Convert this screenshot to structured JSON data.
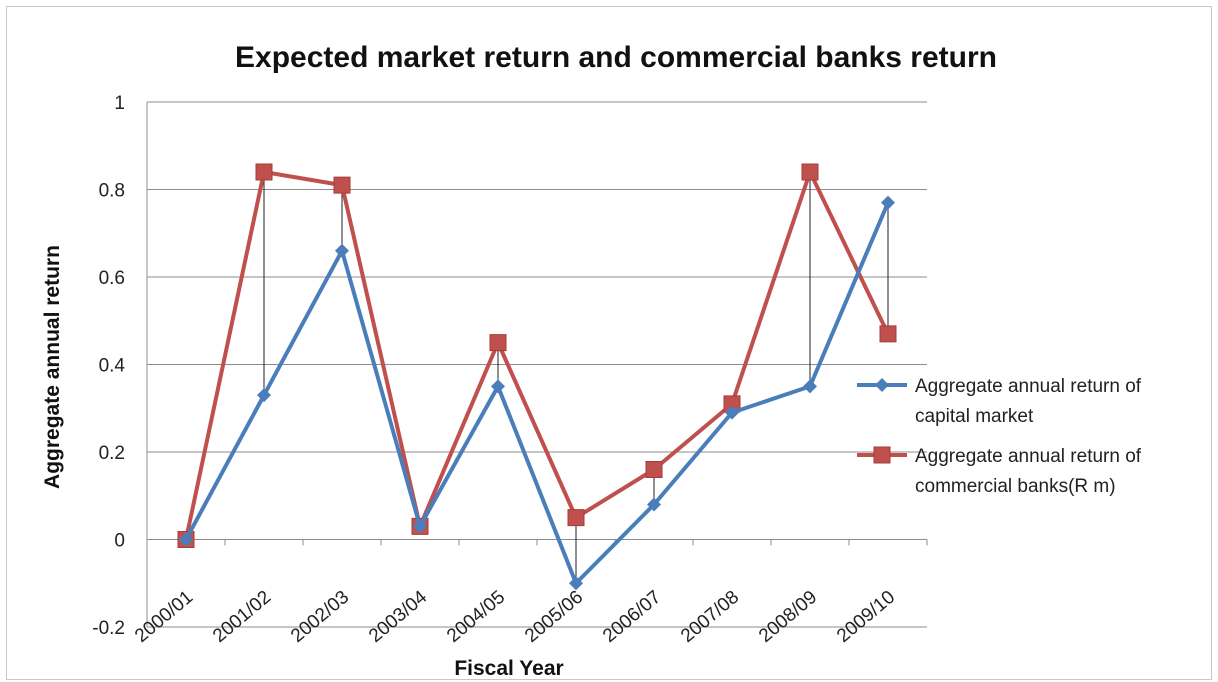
{
  "chart_data": {
    "type": "line",
    "title": "Expected market return and commercial banks return",
    "xlabel": "Fiscal Year",
    "ylabel": "Aggregate annual return",
    "categories": [
      "2000/01",
      "2001/02",
      "2002/03",
      "2003/04",
      "2004/05",
      "2005/06",
      "2006/07",
      "2007/08",
      "2008/09",
      "2009/10"
    ],
    "ylim": [
      -0.2,
      1
    ],
    "yticks": [
      "-0.2",
      "0",
      "0.2",
      "0.4",
      "0.6",
      "0.8",
      "1"
    ],
    "grid": true,
    "legend_position": "right",
    "series": [
      {
        "name": "Aggregate annual return of capital market",
        "legend_lines": [
          "Aggregate annual return of",
          "capital market"
        ],
        "color": "#4a7ebb",
        "marker": "diamond",
        "values": [
          0.0,
          0.33,
          0.66,
          0.03,
          0.35,
          -0.1,
          0.08,
          0.29,
          0.35,
          0.77
        ]
      },
      {
        "name": "Aggregate annual return of commercial banks(R m)",
        "legend_lines": [
          "Aggregate annual return of",
          "commercial banks(R m)"
        ],
        "color": "#c0504d",
        "marker": "square",
        "values": [
          0.0,
          0.84,
          0.81,
          0.03,
          0.45,
          0.05,
          0.16,
          0.31,
          0.84,
          0.47
        ]
      }
    ],
    "drop_lines": true
  }
}
